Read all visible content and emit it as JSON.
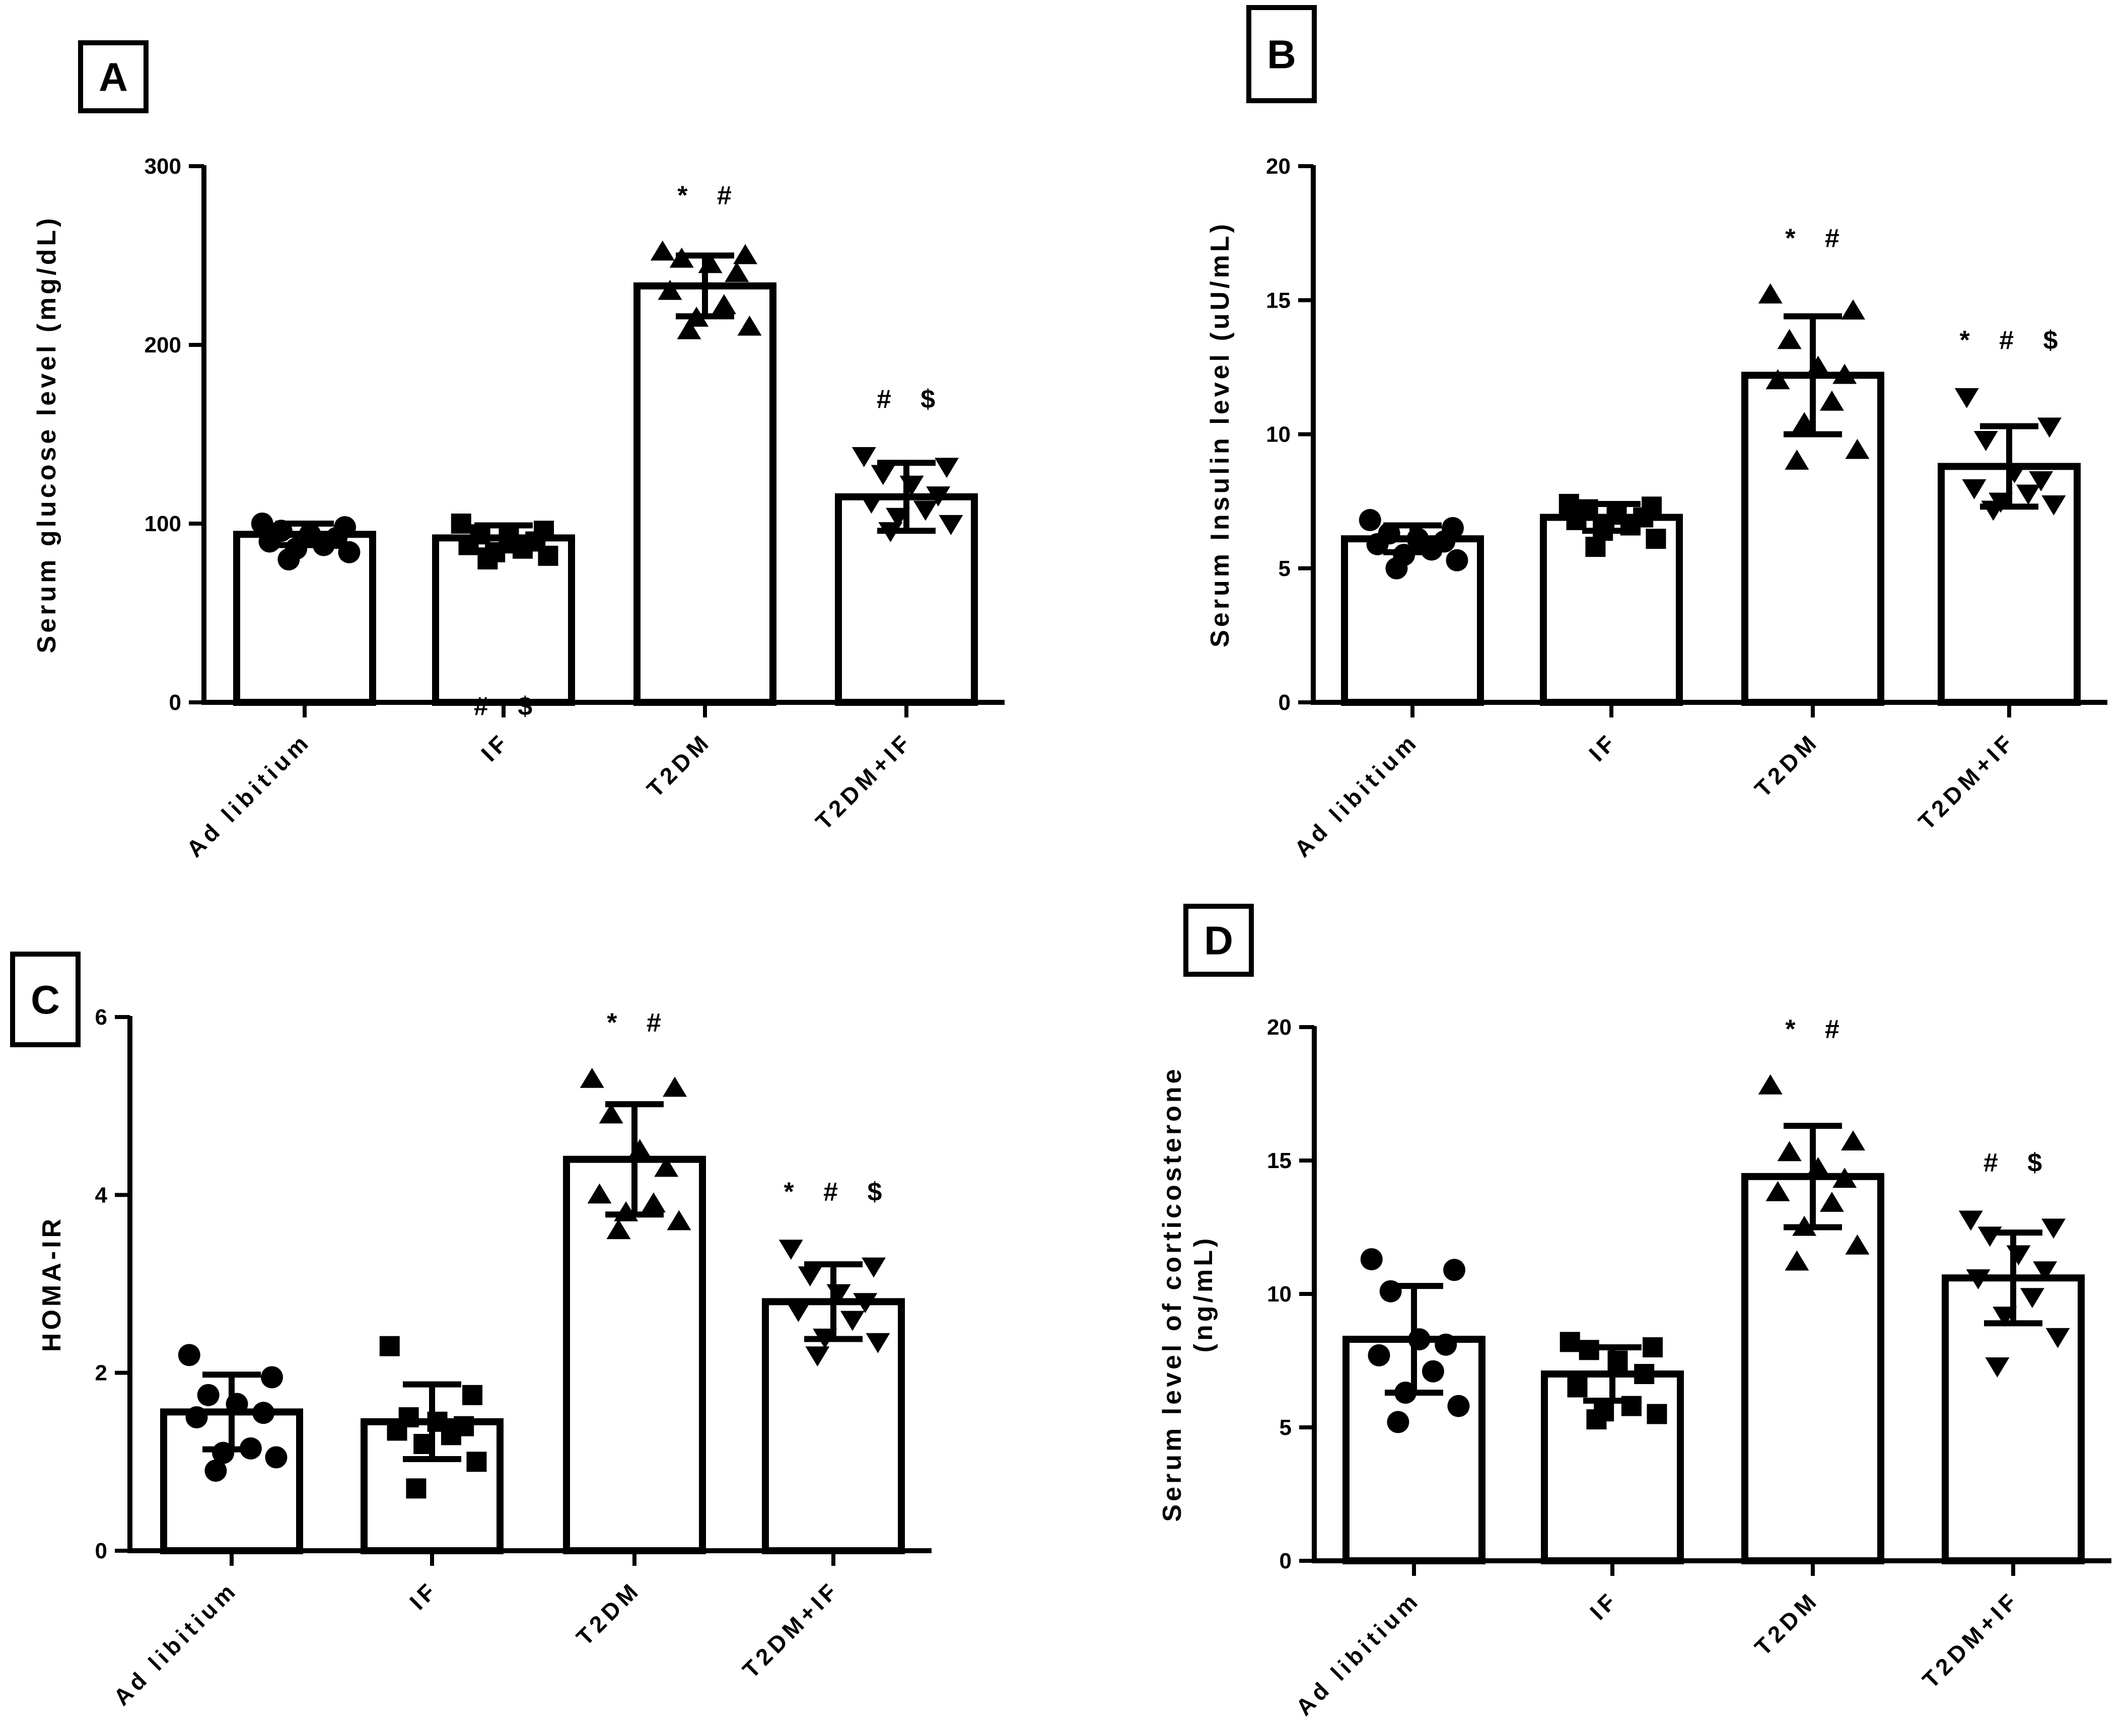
{
  "chart_data": [
    {
      "type": "bar",
      "panel_label": "A",
      "title": "",
      "ylabel": "Serum glucose level (mg/dL)",
      "xlabel": "",
      "ylim": [
        0,
        300
      ],
      "yticks": [
        0,
        100,
        200,
        300
      ],
      "categories": [
        "Ad libitium",
        "IF",
        "T2DM",
        "T2DM+IF"
      ],
      "marker": [
        "circle",
        "square",
        "triangle-up",
        "triangle-down"
      ],
      "means": [
        94,
        92,
        233,
        115
      ],
      "sd": [
        6,
        7,
        17,
        19
      ],
      "points": [
        [
          100,
          98,
          96,
          94,
          92,
          90,
          88,
          86,
          84,
          80
        ],
        [
          100,
          96,
          94,
          92,
          90,
          88,
          86,
          84,
          82,
          80
        ],
        [
          252,
          250,
          248,
          245,
          240,
          230,
          222,
          215,
          210,
          208
        ],
        [
          138,
          132,
          128,
          122,
          116,
          112,
          108,
          104,
          100,
          96
        ]
      ],
      "annotations": [
        "",
        "# $",
        "* #",
        "# $"
      ]
    },
    {
      "type": "bar",
      "panel_label": "B",
      "title": "",
      "ylabel": "Serum Insulin level (uU/mL)",
      "xlabel": "",
      "ylim": [
        0,
        20
      ],
      "yticks": [
        0,
        5,
        10,
        15,
        20
      ],
      "categories": [
        "Ad libitium",
        "IF",
        "T2DM",
        "T2DM+IF"
      ],
      "marker": [
        "circle",
        "square",
        "triangle-up",
        "triangle-down"
      ],
      "means": [
        6.1,
        6.9,
        12.2,
        8.8
      ],
      "sd": [
        0.5,
        0.5,
        2.2,
        1.5
      ],
      "points": [
        [
          6.8,
          6.5,
          6.3,
          6.1,
          6.0,
          5.9,
          5.7,
          5.5,
          5.3,
          5.0
        ],
        [
          7.4,
          7.3,
          7.2,
          7.0,
          6.9,
          6.8,
          6.6,
          6.4,
          6.1,
          5.8
        ],
        [
          15.2,
          14.6,
          13.5,
          12.5,
          12.2,
          12.0,
          11.2,
          10.4,
          9.4,
          9.0
        ],
        [
          11.4,
          10.3,
          9.8,
          8.6,
          8.3,
          8.0,
          7.8,
          7.5,
          7.4,
          7.2
        ]
      ],
      "annotations": [
        "",
        "",
        "* #",
        "* # $"
      ]
    },
    {
      "type": "bar",
      "panel_label": "C",
      "title": "",
      "ylabel": "HOMA-IR",
      "xlabel": "",
      "ylim": [
        0,
        6
      ],
      "yticks": [
        0,
        2,
        4,
        6
      ],
      "categories": [
        "Ad libitium",
        "IF",
        "T2DM",
        "T2DM+IF"
      ],
      "marker": [
        "circle",
        "square",
        "triangle-up",
        "triangle-down"
      ],
      "means": [
        1.56,
        1.45,
        4.4,
        2.8
      ],
      "sd": [
        0.42,
        0.42,
        0.62,
        0.42
      ],
      "points": [
        [
          2.2,
          1.95,
          1.75,
          1.65,
          1.55,
          1.5,
          1.15,
          1.1,
          1.05,
          0.9
        ],
        [
          2.3,
          1.75,
          1.5,
          1.45,
          1.4,
          1.35,
          1.3,
          1.2,
          1.0,
          0.7
        ],
        [
          5.3,
          5.2,
          4.9,
          4.5,
          4.3,
          4.0,
          3.9,
          3.8,
          3.7,
          3.6
        ],
        [
          3.4,
          3.2,
          3.1,
          2.9,
          2.8,
          2.7,
          2.6,
          2.4,
          2.35,
          2.2
        ]
      ],
      "annotations": [
        "",
        "",
        "* #",
        "* # $"
      ]
    },
    {
      "type": "bar",
      "panel_label": "D",
      "title": "",
      "ylabel": "Serum level of corticosterone (ng/mL)",
      "ylabel_lines": [
        "Serum level of corticosterone",
        "(ng/mL)"
      ],
      "xlabel": "",
      "ylim": [
        0,
        20
      ],
      "yticks": [
        0,
        5,
        10,
        15,
        20
      ],
      "categories": [
        "Ad libitium",
        "IF",
        "T2DM",
        "T2DM+IF"
      ],
      "marker": [
        "circle",
        "square",
        "triangle-up",
        "triangle-down"
      ],
      "means": [
        8.3,
        7.0,
        14.4,
        10.6
      ],
      "sd": [
        2.0,
        1.0,
        1.9,
        1.7
      ],
      "points": [
        [
          11.3,
          10.9,
          10.1,
          8.3,
          8.1,
          7.7,
          7.1,
          6.3,
          5.8,
          5.2
        ],
        [
          8.2,
          8.0,
          7.9,
          7.5,
          7.0,
          6.5,
          5.8,
          5.6,
          5.5,
          5.3
        ],
        [
          17.8,
          15.7,
          15.3,
          14.7,
          14.3,
          13.8,
          13.4,
          12.5,
          11.8,
          11.2
        ],
        [
          12.8,
          12.5,
          12.2,
          11.5,
          10.9,
          10.6,
          9.9,
          9.2,
          8.4,
          7.3
        ]
      ],
      "annotations": [
        "",
        "",
        "* #",
        "# $"
      ]
    }
  ]
}
